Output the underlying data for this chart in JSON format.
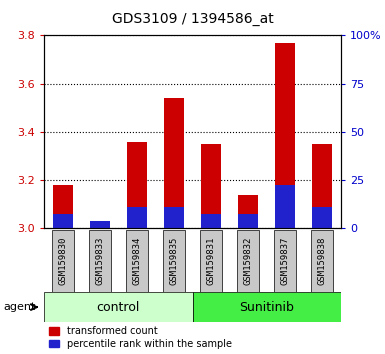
{
  "title": "GDS3109 / 1394586_at",
  "samples": [
    "GSM159830",
    "GSM159833",
    "GSM159834",
    "GSM159835",
    "GSM159831",
    "GSM159832",
    "GSM159837",
    "GSM159838"
  ],
  "red_values": [
    3.18,
    3.02,
    3.36,
    3.54,
    3.35,
    3.14,
    3.77,
    3.35
  ],
  "blue_values": [
    3.06,
    3.03,
    3.09,
    3.09,
    3.06,
    3.06,
    3.18,
    3.09
  ],
  "y_min": 3.0,
  "y_max": 3.8,
  "y_ticks": [
    3.0,
    3.2,
    3.4,
    3.6,
    3.8
  ],
  "y2_ticks": [
    0,
    25,
    50,
    75,
    100
  ],
  "y2_labels": [
    "0",
    "25",
    "50",
    "75",
    "100%"
  ],
  "groups": [
    {
      "label": "control",
      "indices": [
        0,
        1,
        2,
        3
      ],
      "color": "#ccffcc"
    },
    {
      "label": "Sunitinib",
      "indices": [
        4,
        5,
        6,
        7
      ],
      "color": "#44ee44"
    }
  ],
  "bar_width": 0.55,
  "red_color": "#cc0000",
  "blue_color": "#2222cc",
  "bg_color": "#c8c8c8",
  "plot_bg": "#ffffff",
  "title_color": "#000000",
  "left_axis_color": "#cc0000",
  "right_axis_color": "#0000cc",
  "agent_label": "agent",
  "legend_red": "transformed count",
  "legend_blue": "percentile rank within the sample"
}
